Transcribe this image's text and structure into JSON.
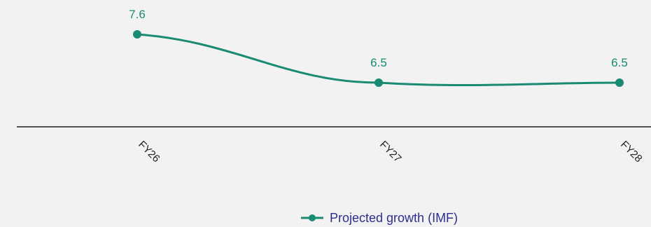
{
  "chart_data": {
    "type": "line",
    "x": [
      "FY26",
      "FY27",
      "FY28"
    ],
    "series": [
      {
        "name": "Projected growth (IMF)",
        "values": [
          7.6,
          6.5,
          6.5
        ],
        "color": "#1a8a72"
      }
    ],
    "data_labels": [
      "7.6",
      "6.5",
      "6.5"
    ],
    "title": "",
    "xlabel": "",
    "ylabel": "",
    "legend_position": "bottom",
    "grid": false,
    "background": "#f2f2f2",
    "axis_color": "#1f1f1f",
    "tick_label_color": "#1f1f1f",
    "legend_text_color": "#2e2e8f",
    "smooth": true
  }
}
